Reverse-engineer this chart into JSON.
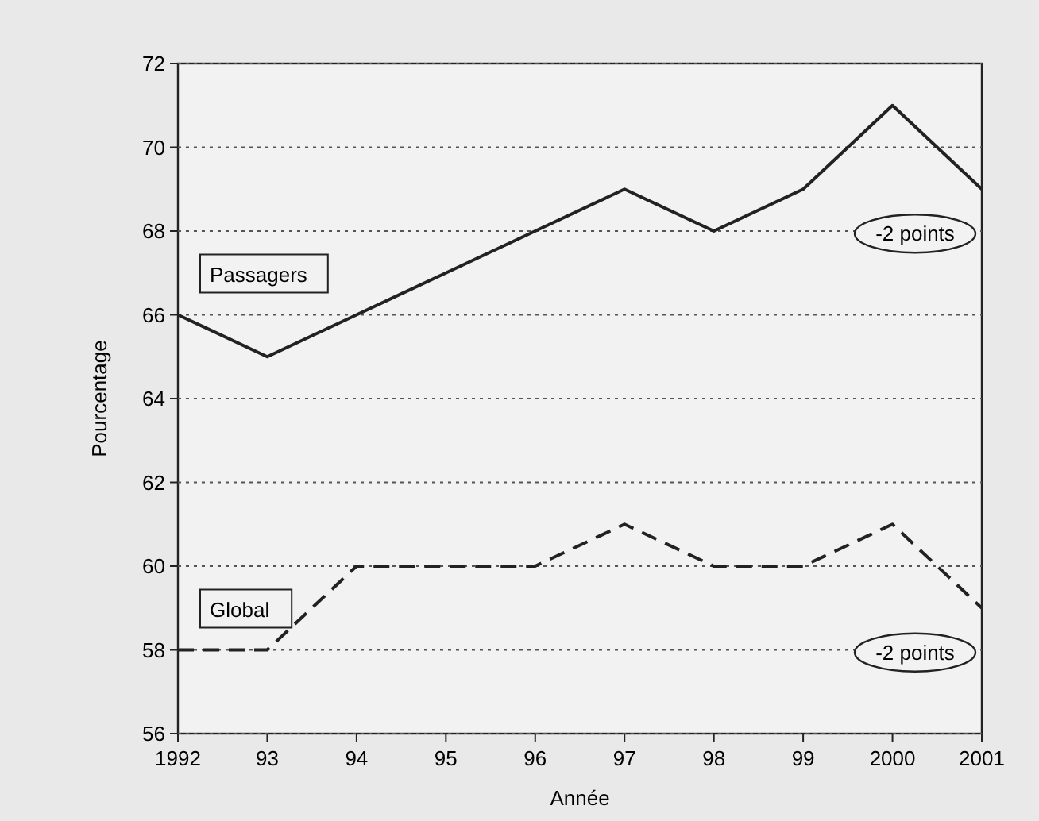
{
  "chart_data": {
    "type": "line",
    "xlabel": "Année",
    "ylabel": "Pourcentage",
    "x": [
      1992,
      1993,
      1994,
      1995,
      1996,
      1997,
      1998,
      1999,
      2000,
      2001
    ],
    "xlim": [
      1992,
      2001
    ],
    "xticks": [
      1992,
      {
        "value": 1993,
        "label": "93"
      },
      {
        "value": 1994,
        "label": "94"
      },
      {
        "value": 1995,
        "label": "95"
      },
      {
        "value": 1996,
        "label": "96"
      },
      {
        "value": 1997,
        "label": "97"
      },
      {
        "value": 1998,
        "label": "98"
      },
      {
        "value": 1999,
        "label": "99"
      },
      2000,
      2001
    ],
    "ylim": [
      56,
      72
    ],
    "yticks": [
      56,
      58,
      60,
      62,
      64,
      66,
      68,
      70,
      72
    ],
    "grid": "y",
    "series": [
      {
        "name": "Passagers",
        "color": "#222222",
        "line_style": "solid",
        "values": [
          66,
          65,
          66,
          67,
          68,
          69,
          68,
          69,
          71,
          69
        ]
      },
      {
        "name": "Global",
        "color": "#222222",
        "line_style": "dashed",
        "values": [
          58,
          58,
          60,
          60,
          60,
          61,
          60,
          60,
          61,
          59
        ]
      }
    ],
    "annotations": [
      "-2 points",
      "-2 points"
    ]
  }
}
